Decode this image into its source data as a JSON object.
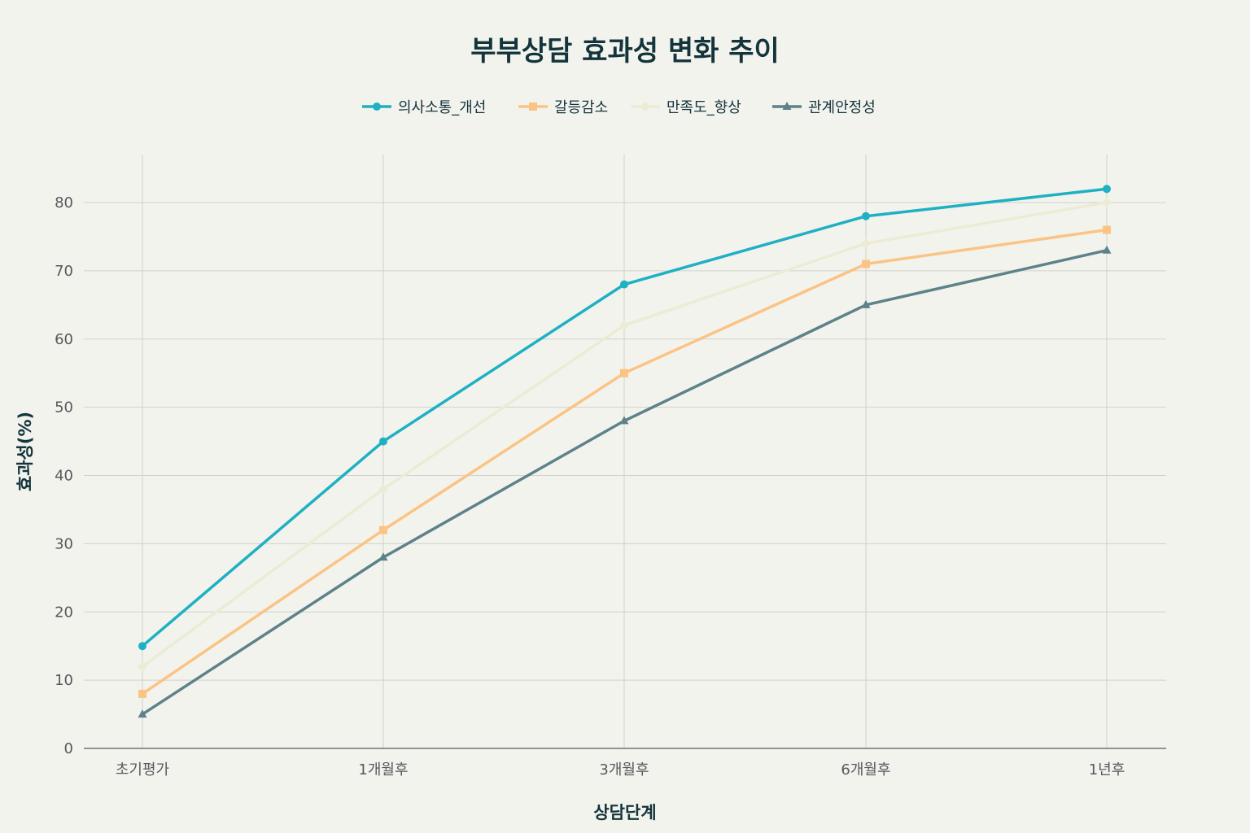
{
  "chart_data": {
    "type": "line",
    "title": "부부상담 효과성 변화 추이",
    "xlabel": "상담단계",
    "ylabel": "효과성(%)",
    "categories": [
      "초기평가",
      "1개월후",
      "3개월후",
      "6개월후",
      "1년후"
    ],
    "ylim": [
      0,
      87
    ],
    "yticks": [
      0,
      10,
      20,
      30,
      40,
      50,
      60,
      70,
      80
    ],
    "grid": true,
    "legend_position": "top-center",
    "series": [
      {
        "name": "의사소통_개선",
        "values": [
          15,
          45,
          68,
          78,
          82
        ],
        "color": "#1fb0c4",
        "marker": "circle"
      },
      {
        "name": "갈등감소",
        "values": [
          8,
          32,
          55,
          71,
          76
        ],
        "color": "#fbc384",
        "marker": "square"
      },
      {
        "name": "만족도_향상",
        "values": [
          12,
          38,
          62,
          74,
          80
        ],
        "color": "#ecebd4",
        "marker": "diamond"
      },
      {
        "name": "관계안정성",
        "values": [
          5,
          28,
          48,
          65,
          73
        ],
        "color": "#5d8289",
        "marker": "triangle"
      }
    ]
  }
}
